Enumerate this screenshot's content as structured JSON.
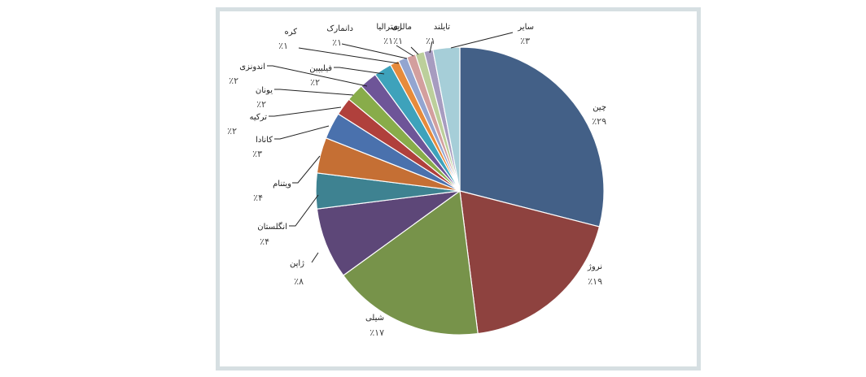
{
  "chart_data": {
    "type": "pie",
    "title": "",
    "slices": [
      {
        "label": "چین",
        "pct_label": "٪۲۹",
        "value": 29,
        "color": "#436087"
      },
      {
        "label": "نروژ",
        "pct_label": "٪۱۹",
        "value": 19,
        "color": "#8e423f"
      },
      {
        "label": "شیلی",
        "pct_label": "٪۱۷",
        "value": 17,
        "color": "#77934a"
      },
      {
        "label": "ژاپن",
        "pct_label": "٪۸",
        "value": 8,
        "color": "#5d4778"
      },
      {
        "label": "انگلستان",
        "pct_label": "٪۴",
        "value": 4,
        "color": "#3e8291"
      },
      {
        "label": "ویتنام",
        "pct_label": "٪۴",
        "value": 4,
        "color": "#c56f34"
      },
      {
        "label": "کانادا",
        "pct_label": "٪۳",
        "value": 3,
        "color": "#4a71ad"
      },
      {
        "label": "ترکیه",
        "pct_label": "٪۲",
        "value": 2,
        "color": "#b0403c"
      },
      {
        "label": "یونان",
        "pct_label": "٪۲",
        "value": 2,
        "color": "#88ac4a"
      },
      {
        "label": "اندونزی",
        "pct_label": "٪۲",
        "value": 2,
        "color": "#6e5598"
      },
      {
        "label": "فیلیپین",
        "pct_label": "٪۲",
        "value": 2,
        "color": "#3ea2bb"
      },
      {
        "label": "کره",
        "pct_label": "٪۱",
        "value": 1,
        "color": "#e78b3b"
      },
      {
        "label": "دانمارک",
        "pct_label": "٪۱",
        "value": 1,
        "color": "#93a5d0"
      },
      {
        "label": "استرالیا",
        "pct_label": "٪۱",
        "value": 1,
        "color": "#d39f9e"
      },
      {
        "label": "مالزی",
        "pct_label": "٪۱",
        "value": 1,
        "color": "#bccf9b"
      },
      {
        "label": "تایلند",
        "pct_label": "٪۱",
        "value": 1,
        "color": "#a79cc0"
      },
      {
        "label": "سایر",
        "pct_label": "٪۳",
        "value": 3,
        "color": "#a6ced8"
      }
    ]
  }
}
